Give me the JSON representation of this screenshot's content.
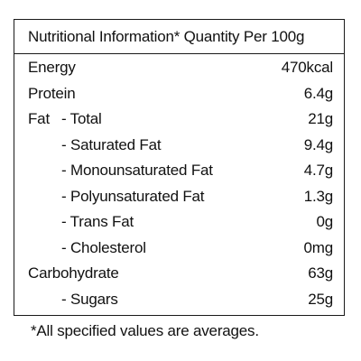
{
  "header": {
    "title": "Nutritional Information* Quantity Per 100g"
  },
  "rows": [
    {
      "label": "Energy",
      "value": "470kcal"
    },
    {
      "label": "Protein",
      "value": "6.4g"
    },
    {
      "label": "Fat",
      "sub": "- Total",
      "value": "21g"
    },
    {
      "sub": "- Saturated Fat",
      "value": "9.4g"
    },
    {
      "sub": "- Monounsaturated Fat",
      "value": "4.7g"
    },
    {
      "sub": "- Polyunsaturated Fat",
      "value": "1.3g"
    },
    {
      "sub": "- Trans Fat",
      "value": "0g"
    },
    {
      "sub": "- Cholesterol",
      "value": "0mg"
    },
    {
      "label": "Carbohydrate",
      "value": "63g"
    },
    {
      "sub": "- Sugars",
      "value": "25g"
    }
  ],
  "footnote": "*All specified values are averages."
}
